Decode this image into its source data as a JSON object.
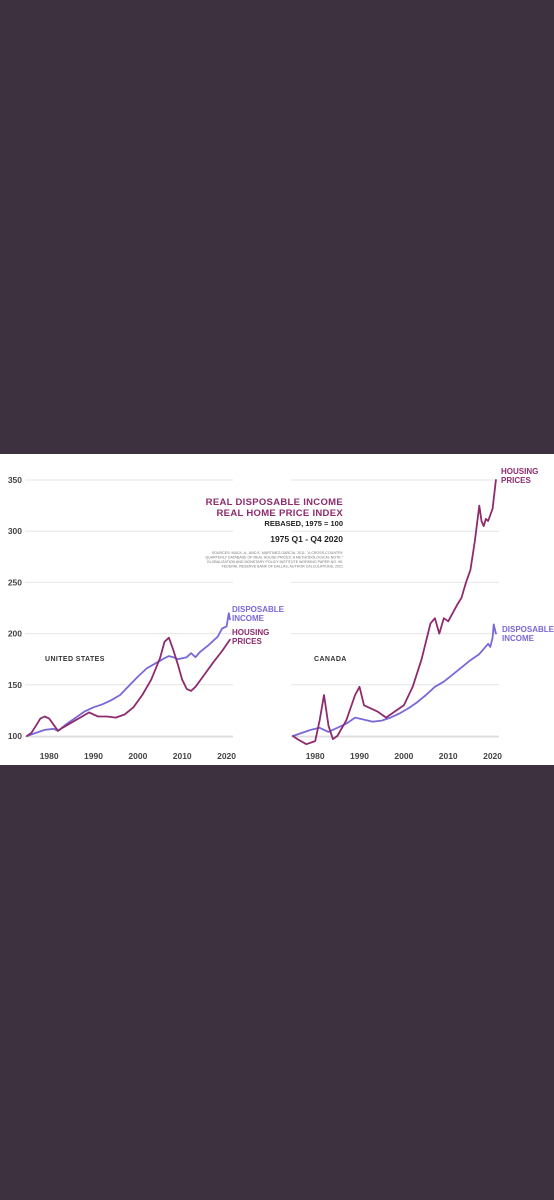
{
  "chart_data": {
    "type": "line",
    "title_lines": [
      "REAL DISPOSABLE INCOME",
      "REAL HOME PRICE INDEX"
    ],
    "subtitle": "REBASED, 1975 = 100",
    "period": "1975 Q1 - Q4 2020",
    "source_lines": [
      "SOURCES: MACK, A., AND E. MARTINEZ-GARCIA. 2011. \"A CROSS-COUNTRY",
      "QUARTERLY DATABASE OF REAL HOUSE PRICES: A METHODOLOGICAL NOTE.\"",
      "GLOBALIZATION AND MONETARY POLICY INSTITUTE WORKING PAPER NO. 99.",
      "FEDERAL RESERVE BANK OF DALLAS; AUTHOR CALCULATIONS, 2021"
    ],
    "ylim": [
      100,
      350
    ],
    "xlim": [
      1975,
      2021
    ],
    "yticks": [
      100,
      150,
      200,
      250,
      300,
      350
    ],
    "xticks": [
      1980,
      1990,
      2000,
      2010,
      2020
    ],
    "colors": {
      "disposable_income": "#7b68d8",
      "housing_prices": "#8e2b6d"
    },
    "panels": [
      {
        "name": "UNITED STATES",
        "series": [
          {
            "name": "DISPOSABLE INCOME",
            "label_lines": [
              "DISPOSABLE",
              "INCOME"
            ],
            "key": "disposable_income",
            "x": [
              1975,
              1977,
              1979,
              1981,
              1982,
              1984,
              1986,
              1988,
              1990,
              1992,
              1994,
              1996,
              1998,
              2000,
              2002,
              2004,
              2006,
              2007,
              2008,
              2009,
              2010,
              2011,
              2012,
              2013,
              2014,
              2016,
              2018,
              2019,
              2020,
              2020.5,
              2020.75
            ],
            "values": [
              100,
              103,
              106,
              107,
              105,
              112,
              118,
              124,
              128,
              131,
              135,
              140,
              149,
              158,
              166,
              171,
              176,
              178,
              177,
              175,
              176,
              177,
              181,
              177,
              182,
              189,
              197,
              205,
              207,
              220,
              214
            ]
          },
          {
            "name": "HOUSING PRICES",
            "label_lines": [
              "HOUSING",
              "PRICES"
            ],
            "key": "housing_prices",
            "x": [
              1975,
              1976,
              1977,
              1978,
              1979,
              1980,
              1981,
              1982,
              1983,
              1985,
              1987,
              1989,
              1991,
              1993,
              1995,
              1997,
              1999,
              2001,
              2003,
              2005,
              2006,
              2007,
              2008,
              2009,
              2010,
              2011,
              2012,
              2013,
              2015,
              2017,
              2019,
              2020.75
            ],
            "values": [
              100,
              103,
              110,
              117,
              119,
              117,
              111,
              105,
              108,
              113,
              118,
              123,
              119,
              119,
              118,
              121,
              128,
              140,
              155,
              176,
              192,
              196,
              184,
              170,
              155,
              146,
              144,
              148,
              160,
              172,
              183,
              194
            ]
          }
        ]
      },
      {
        "name": "CANADA",
        "series": [
          {
            "name": "DISPOSABLE INCOME",
            "label_lines": [
              "DISPOSABLE",
              "INCOME"
            ],
            "key": "disposable_income",
            "x": [
              1975,
              1977,
              1979,
              1981,
              1983,
              1985,
              1987,
              1989,
              1991,
              1993,
              1995,
              1997,
              1999,
              2001,
              2003,
              2005,
              2007,
              2009,
              2011,
              2013,
              2015,
              2017,
              2019,
              2019.5,
              2020,
              2020.25,
              2020.75
            ],
            "values": [
              100,
              103,
              106,
              108,
              104,
              108,
              112,
              118,
              116,
              114,
              115,
              118,
              122,
              127,
              133,
              140,
              148,
              153,
              160,
              167,
              174,
              180,
              190,
              187,
              196,
              209,
              200
            ]
          },
          {
            "name": "HOUSING PRICES",
            "label_lines": [
              "HOUSING",
              "PRICES"
            ],
            "key": "housing_prices",
            "x": [
              1975,
              1976,
              1978,
              1980,
              1981,
              1982,
              1983,
              1984,
              1985,
              1987,
              1989,
              1990,
              1991,
              1992,
              1994,
              1996,
              1998,
              2000,
              2002,
              2004,
              2006,
              2007,
              2008,
              2009,
              2010,
              2011,
              2012,
              2013,
              2014,
              2015,
              2016,
              2017,
              2017.5,
              2018,
              2018.5,
              2019,
              2020,
              2020.75
            ],
            "values": [
              100,
              97,
              92,
              95,
              115,
              140,
              110,
              97,
              100,
              115,
              140,
              148,
              130,
              128,
              124,
              118,
              124,
              130,
              148,
              175,
              210,
              215,
              200,
              215,
              212,
              220,
              228,
              235,
              250,
              262,
              290,
              325,
              310,
              305,
              312,
              310,
              322,
              350
            ]
          }
        ]
      }
    ]
  }
}
